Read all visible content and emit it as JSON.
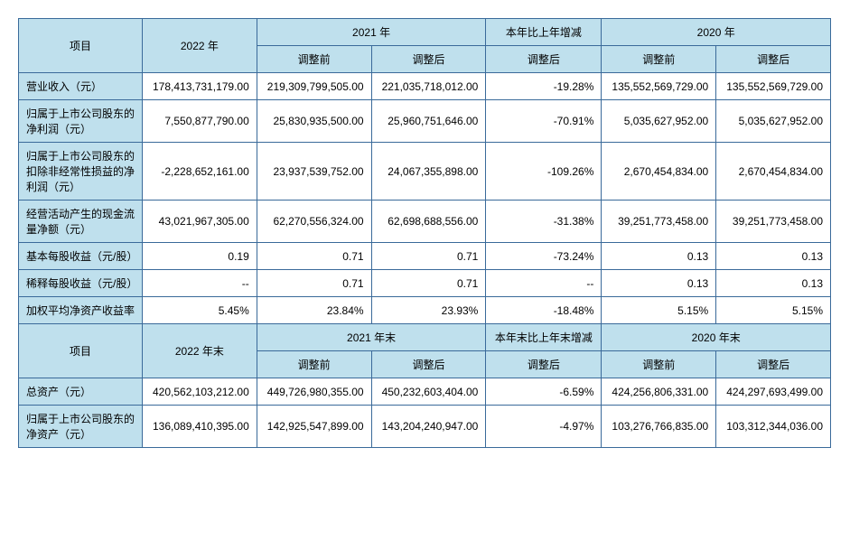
{
  "colors": {
    "header_bg": "#bfe0ed",
    "cell_bg": "#ffffff",
    "border": "#3a6a9a",
    "text": "#000000"
  },
  "typography": {
    "font_family": "Microsoft YaHei, SimSun, Arial",
    "font_size_pt": 9
  },
  "table1": {
    "headers": {
      "item": "项目",
      "y2022": "2022 年",
      "y2021": "2021 年",
      "change": "本年比上年增减",
      "y2020": "2020 年",
      "before": "调整前",
      "after": "调整后"
    },
    "rows": [
      {
        "label": "营业收入（元）",
        "c2022": "178,413,731,179.00",
        "c2021_before": "219,309,799,505.00",
        "c2021_after": "221,035,718,012.00",
        "change": "-19.28%",
        "c2020_before": "135,552,569,729.00",
        "c2020_after": "135,552,569,729.00"
      },
      {
        "label": "归属于上市公司股东的净利润（元）",
        "c2022": "7,550,877,790.00",
        "c2021_before": "25,830,935,500.00",
        "c2021_after": "25,960,751,646.00",
        "change": "-70.91%",
        "c2020_before": "5,035,627,952.00",
        "c2020_after": "5,035,627,952.00"
      },
      {
        "label": "归属于上市公司股东的扣除非经常性损益的净利润（元）",
        "c2022": "-2,228,652,161.00",
        "c2021_before": "23,937,539,752.00",
        "c2021_after": "24,067,355,898.00",
        "change": "-109.26%",
        "c2020_before": "2,670,454,834.00",
        "c2020_after": "2,670,454,834.00"
      },
      {
        "label": "经营活动产生的现金流量净额（元）",
        "c2022": "43,021,967,305.00",
        "c2021_before": "62,270,556,324.00",
        "c2021_after": "62,698,688,556.00",
        "change": "-31.38%",
        "c2020_before": "39,251,773,458.00",
        "c2020_after": "39,251,773,458.00"
      },
      {
        "label": "基本每股收益（元/股）",
        "c2022": "0.19",
        "c2021_before": "0.71",
        "c2021_after": "0.71",
        "change": "-73.24%",
        "c2020_before": "0.13",
        "c2020_after": "0.13"
      },
      {
        "label": "稀释每股收益（元/股）",
        "c2022": "--",
        "c2021_before": "0.71",
        "c2021_after": "0.71",
        "change": "--",
        "c2020_before": "0.13",
        "c2020_after": "0.13"
      },
      {
        "label": "加权平均净资产收益率",
        "c2022": "5.45%",
        "c2021_before": "23.84%",
        "c2021_after": "23.93%",
        "change": "-18.48%",
        "c2020_before": "5.15%",
        "c2020_after": "5.15%"
      }
    ]
  },
  "table2": {
    "headers": {
      "item": "项目",
      "y2022": "2022 年末",
      "y2021": "2021 年末",
      "change": "本年末比上年末增减",
      "y2020": "2020 年末",
      "before": "调整前",
      "after": "调整后"
    },
    "rows": [
      {
        "label": "总资产（元）",
        "c2022": "420,562,103,212.00",
        "c2021_before": "449,726,980,355.00",
        "c2021_after": "450,232,603,404.00",
        "change": "-6.59%",
        "c2020_before": "424,256,806,331.00",
        "c2020_after": "424,297,693,499.00"
      },
      {
        "label": "归属于上市公司股东的净资产（元）",
        "c2022": "136,089,410,395.00",
        "c2021_before": "142,925,547,899.00",
        "c2021_after": "143,204,240,947.00",
        "change": "-4.97%",
        "c2020_before": "103,276,766,835.00",
        "c2020_after": "103,312,344,036.00"
      }
    ]
  }
}
